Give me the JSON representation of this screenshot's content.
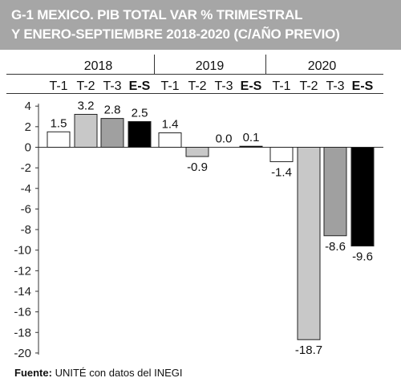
{
  "title": {
    "line1": "G-1  MEXICO. PIB TOTAL VAR % TRIMESTRAL",
    "line2": "Y ENERO-SEPTIEMBRE 2018-2020 (C/AÑO PREVIO)"
  },
  "source": {
    "label": "Fuente:",
    "text": "UNITÉ con datos del INEGI"
  },
  "colors": {
    "T-1": "#ffffff",
    "T-2": "#c8c8c8",
    "T-3": "#a0a0a0",
    "E-S": "#000000"
  },
  "chart_data": {
    "type": "bar",
    "groups": [
      "2018",
      "2019",
      "2020"
    ],
    "categories": [
      "T-1",
      "T-2",
      "T-3",
      "E-S"
    ],
    "series": [
      {
        "group": "2018",
        "values": [
          1.5,
          3.2,
          2.8,
          2.5
        ],
        "labels": [
          "1.5",
          "3.2",
          "2.8",
          "2.5"
        ]
      },
      {
        "group": "2019",
        "values": [
          1.4,
          -0.9,
          0.0,
          0.1
        ],
        "labels": [
          "1.4",
          "-0.9",
          "0.0",
          "0.1"
        ]
      },
      {
        "group": "2020",
        "values": [
          -1.4,
          -18.7,
          -8.6,
          -9.6
        ],
        "labels": [
          "-1.4",
          "-18.7",
          "-8.6",
          "-9.6"
        ]
      }
    ],
    "ylim": [
      -20,
      4
    ],
    "yticks": [
      "4",
      "2",
      "0",
      "-2",
      "-4",
      "-6",
      "-8",
      "-10",
      "-12",
      "-14",
      "-16",
      "-18",
      "-20"
    ],
    "grid": false,
    "legend": "none"
  }
}
